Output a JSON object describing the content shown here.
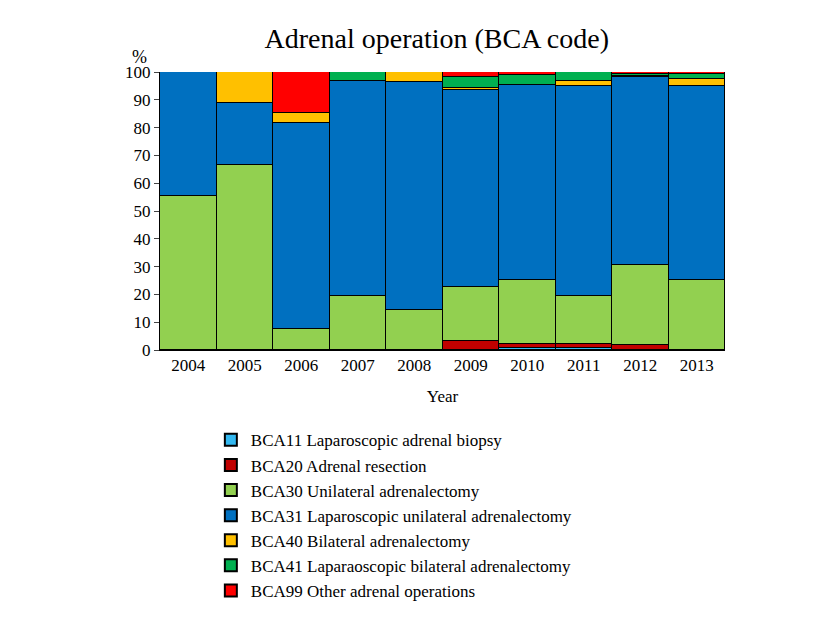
{
  "chart_data": {
    "type": "bar",
    "title": "Adrenal operation (BCA code)",
    "x_label": "Year",
    "y_label": "%",
    "stacked": true,
    "categories": [
      "2004",
      "2005",
      "2006",
      "2007",
      "2008",
      "2009",
      "2010",
      "2011",
      "2012",
      "2013"
    ],
    "series": [
      {
        "name": "BCA11 Laparoscopic adrenal biopsy",
        "color": "#33b8f0",
        "values": [
          0,
          0,
          0,
          0,
          0,
          0,
          0.8,
          0.8,
          0,
          0
        ]
      },
      {
        "name": "BCA20 Adrenal resection",
        "color": "#c00000",
        "values": [
          0,
          0,
          0,
          0,
          0,
          3.4,
          1.2,
          1.2,
          1.8,
          0
        ]
      },
      {
        "name": "BCA30 Unilateral adrenalectomy",
        "color": "#92d050",
        "values": [
          55.5,
          66.7,
          7.4,
          19.4,
          14.3,
          19.3,
          23.2,
          17.6,
          28.6,
          25.2
        ]
      },
      {
        "name": "BCA31 Laparoscopic unilateral adrenalectomy",
        "color": "#0070c0",
        "values": [
          44.5,
          22.2,
          74.1,
          77.4,
          82.1,
          71.0,
          70.0,
          75.5,
          67.7,
          69.6
        ]
      },
      {
        "name": "BCA40 Bilateral adrenalectomy",
        "color": "#ffc000",
        "values": [
          0,
          11.1,
          3.7,
          0,
          3.6,
          0.6,
          0,
          1.8,
          0.5,
          2.6
        ]
      },
      {
        "name": "BCA41 Laparaoscopic bilateral adrenalectomy",
        "color": "#00b050",
        "values": [
          0,
          0,
          0,
          3.2,
          0,
          4.0,
          3.8,
          3.1,
          0.7,
          1.8
        ]
      },
      {
        "name": "BCA99 Other adrenal operations",
        "color": "#ff0000",
        "values": [
          0,
          0,
          14.8,
          0,
          0,
          1.7,
          1.0,
          0,
          0.7,
          0.8
        ]
      }
    ],
    "ylim": [
      0,
      100
    ],
    "yticks": [
      0,
      10,
      20,
      30,
      40,
      50,
      60,
      70,
      80,
      90,
      100
    ],
    "grid": false,
    "legend": "bottom"
  }
}
